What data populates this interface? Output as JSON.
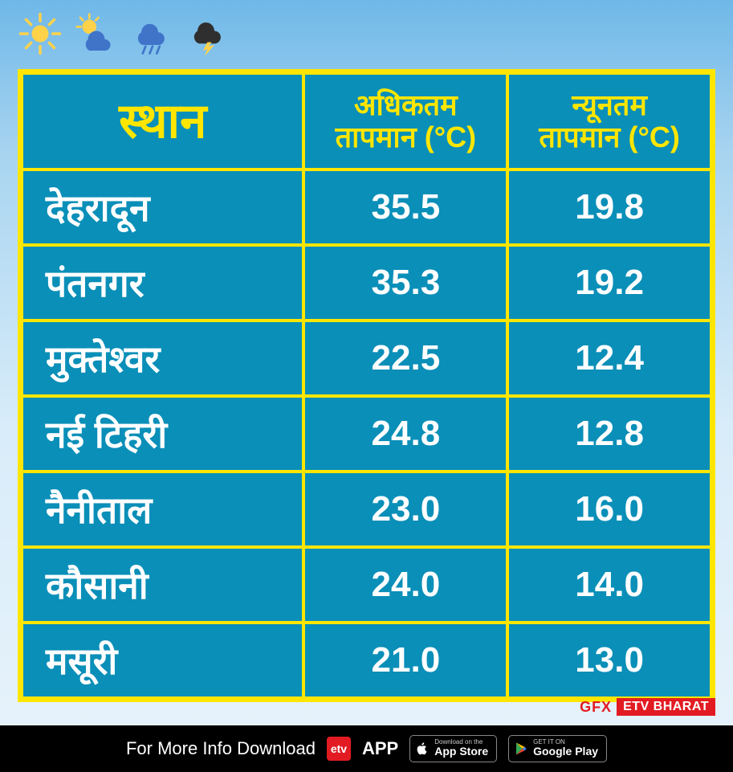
{
  "table": {
    "type": "table",
    "border_color": "#ffe600",
    "background_color": "#0a8fb8",
    "header_text_color": "#ffe600",
    "body_text_color": "#ffffff",
    "header_fontsize_col0": 60,
    "header_fontsize_col12": 36,
    "body_fontsize_col0": 46,
    "body_fontsize_col12": 44,
    "columns": [
      "स्थान",
      "अधिकतम\nतापमान (°C)",
      "न्यूनतम\nतापमान (°C)"
    ],
    "rows": [
      [
        "देहरादून",
        "35.5",
        "19.8"
      ],
      [
        "पंतनगर",
        "35.3",
        "19.2"
      ],
      [
        "मुक्तेश्वर",
        "22.5",
        "12.4"
      ],
      [
        "नई टिहरी",
        "24.8",
        "12.8"
      ],
      [
        "नैनीताल",
        "23.0",
        "16.0"
      ],
      [
        "कौसानी",
        "24.0",
        "14.0"
      ],
      [
        "मसूरी",
        "21.0",
        "13.0"
      ]
    ]
  },
  "icons": {
    "sun_color": "#ffd24a",
    "cloud_color": "#3f74c9",
    "rain_color": "#3f74c9",
    "lightning_color": "#2f2f2f",
    "bolt_color": "#ffd24a"
  },
  "badge": {
    "gfx": "GFX",
    "etv": "ETV BHARAT",
    "gfx_color": "#e21b22",
    "etv_bg": "#e21b22",
    "etv_text": "#ffffff"
  },
  "footer": {
    "bg": "#000000",
    "text_color": "#ffffff",
    "text": "For More Info Download",
    "app_label": "APP",
    "appstore_small": "Download on the",
    "appstore_big": "App Store",
    "play_small": "GET IT ON",
    "play_big": "Google Play"
  },
  "background": {
    "type": "sky-gradient",
    "stops": [
      "#6fb8e8",
      "#a8d4f0",
      "#d8ecf9",
      "#e8f3fb"
    ]
  }
}
